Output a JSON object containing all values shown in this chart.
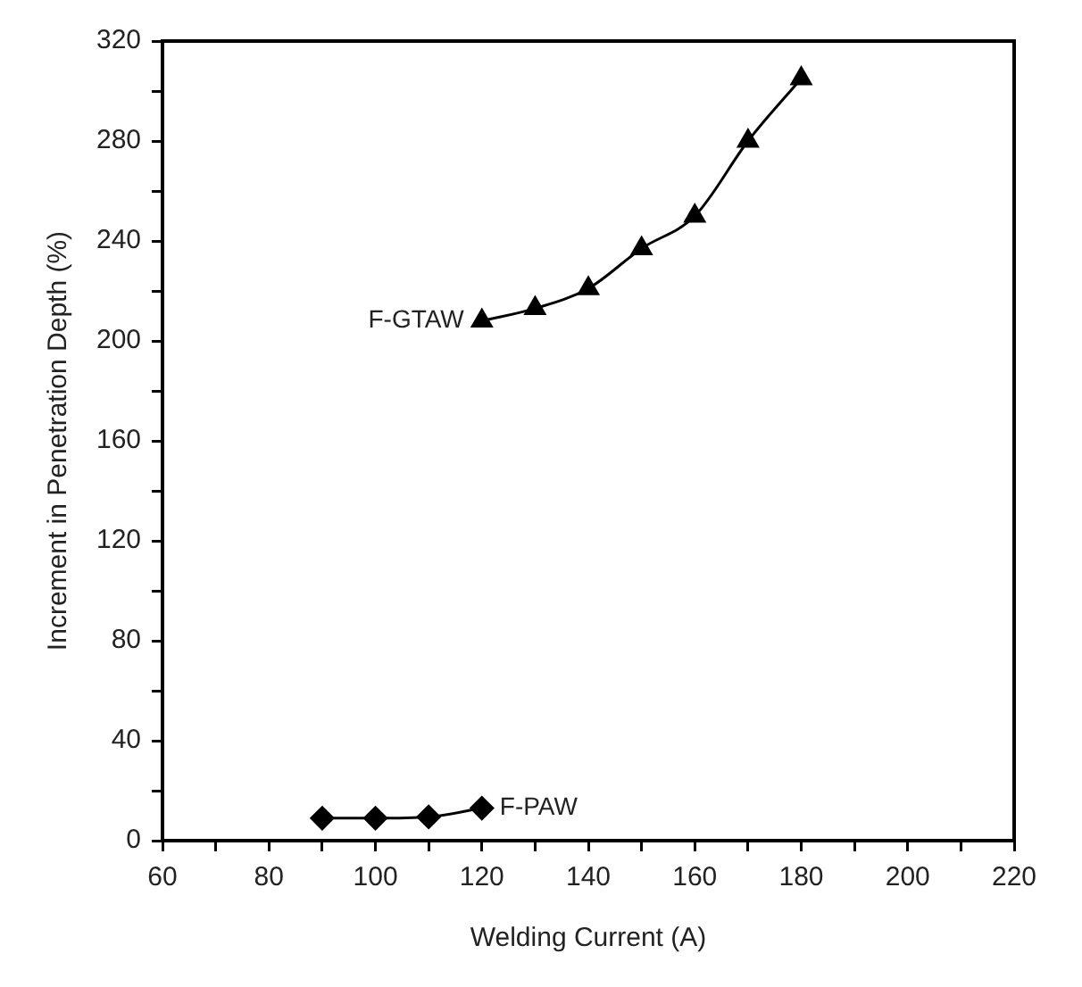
{
  "chart_data": {
    "type": "line",
    "xlabel": "Welding Current (A)",
    "ylabel": "Increment in Penetration Depth (%)",
    "xlim": [
      60,
      220
    ],
    "xticks": [
      60,
      {
        "value": 70,
        "label": null
      },
      80,
      {
        "value": 90,
        "label": null
      },
      100,
      {
        "value": 110,
        "label": null
      },
      120,
      {
        "value": 130,
        "label": null
      },
      140,
      {
        "value": 150,
        "label": null
      },
      160,
      {
        "value": 170,
        "label": null
      },
      180,
      {
        "value": 190,
        "label": null
      },
      200,
      {
        "value": 210,
        "label": null
      },
      220
    ],
    "ylim": [
      0,
      320
    ],
    "yticks": [
      0,
      {
        "value": 20,
        "label": null
      },
      40,
      {
        "value": 60,
        "label": null
      },
      80,
      {
        "value": 100,
        "label": null
      },
      120,
      {
        "value": 140,
        "label": null
      },
      160,
      {
        "value": 180,
        "label": null
      },
      200,
      {
        "value": 220,
        "label": null
      },
      240,
      {
        "value": 260,
        "label": null
      },
      280,
      {
        "value": 300,
        "label": null
      },
      320
    ],
    "grid": false,
    "legend": false,
    "series": [
      {
        "name": "F-GTAW",
        "color": "#000000",
        "marker": "triangle",
        "x": [
          120,
          130,
          140,
          150,
          160,
          170,
          180
        ],
        "values": [
          208,
          213,
          221,
          237,
          250,
          280,
          305
        ]
      },
      {
        "name": "F-PAW",
        "color": "#000000",
        "marker": "diamond",
        "x": [
          90,
          100,
          110,
          120
        ],
        "values": [
          9,
          9,
          9.5,
          13
        ]
      }
    ]
  }
}
